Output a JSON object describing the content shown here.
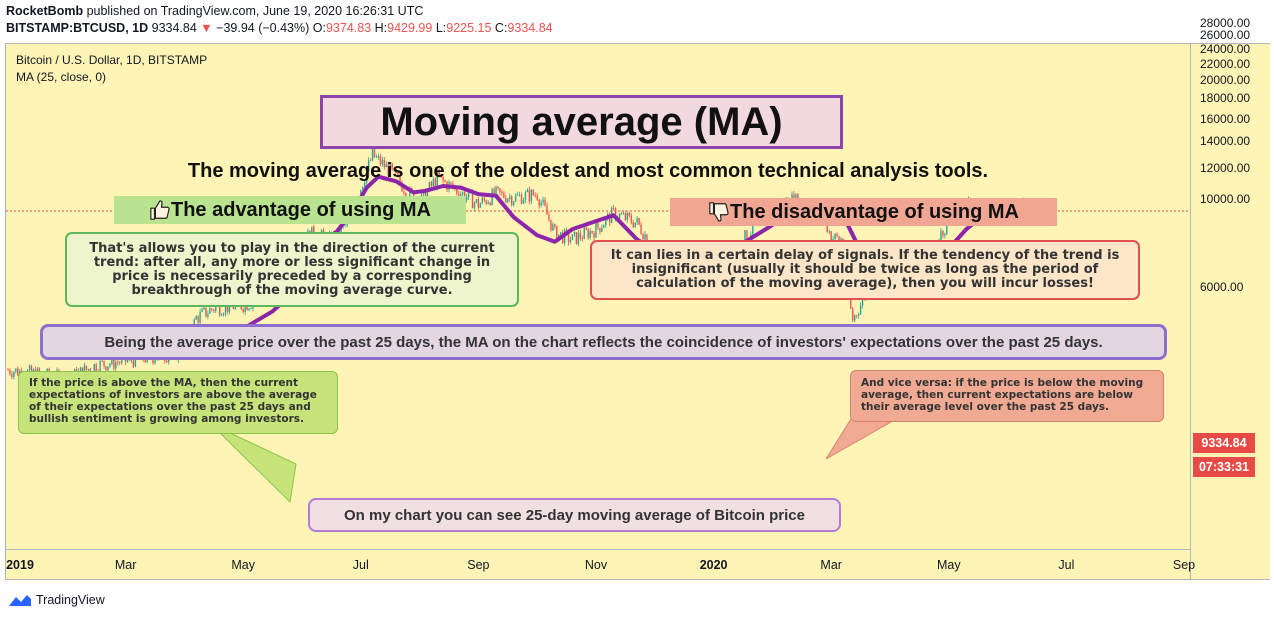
{
  "header": {
    "author": "RocketBomb",
    "published_text": "published on TradingView.com, June 19, 2020 16:26:31 UTC",
    "symbol_line_prefix": "BITSTAMP:BTCUSD, 1D",
    "last_price": "9334.84",
    "change_arrow": "▼",
    "change_text": "−39.94 (−0.43%)",
    "o_label": "O:",
    "o_value": "9374.83",
    "h_label": "H:",
    "h_value": "9429.99",
    "l_label": "L:",
    "l_value": "9225.15",
    "c_label": "C:",
    "c_value": "9334.84"
  },
  "legend": {
    "symbol": "Bitcoin / U.S. Dollar, 1D, BITSTAMP",
    "indicator": "MA (25, close, 0)"
  },
  "annotations": {
    "title": "Moving average (MA)",
    "subtitle": "The moving average is one of the oldest and most common technical analysis tools.",
    "advantage_heading": "The advantage of using MA",
    "advantage_icon": "thumbs-up-icon",
    "advantage_text": "That's allows you to play in the direction of the current trend: after all, any more or less significant change in price is necessarily preceded by a corresponding breakthrough of the moving average curve.",
    "disadvantage_heading": "The disadvantage of using MA",
    "disadvantage_icon": "thumbs-down-icon",
    "disadvantage_text": "It can lies in a certain delay of signals. If the tendency of the trend is insignificant (usually it should be twice as long as the period of calculation of the moving average), then you will incur losses!",
    "wide_text": "Being the average price over the past 25 days, the MA on the chart reflects the coincidence of investors' expectations over the past 25 days.",
    "note_above": "If the price is above the MA, then the current expectations of investors are above the average of their expectations over the past 25 days and bullish sentiment is growing among investors.",
    "note_below": "And vice versa: if the price is below the moving average, then current expectations are below their average level over the past 25 days.",
    "bottom_text": "On my chart you can see  25-day moving average of Bitcoin price"
  },
  "price_tag": "9334.84",
  "time_tag": "07:33:31",
  "footer": {
    "brand": "TradingView"
  },
  "colors": {
    "background": "#fdf4b5",
    "candle_up": "#26a69a",
    "candle_down": "#ef5350",
    "ma_line": "#8e24aa",
    "price_line": "#e84a45"
  },
  "chart_data": {
    "type": "line",
    "ylim": [
      4100,
      29400
    ],
    "y_ticks": [
      "28000.00",
      "26000.00",
      "24000.00",
      "22000.00",
      "20000.00",
      "18000.00",
      "16000.00",
      "14000.00",
      "12000.00",
      "10000.00",
      "6000.00"
    ],
    "x_ticks": [
      {
        "label": "2019",
        "bold": true
      },
      {
        "label": "Mar",
        "bold": false
      },
      {
        "label": "May",
        "bold": false
      },
      {
        "label": "Jul",
        "bold": false
      },
      {
        "label": "Sep",
        "bold": false
      },
      {
        "label": "Nov",
        "bold": false
      },
      {
        "label": "2020",
        "bold": true
      },
      {
        "label": "Mar",
        "bold": false
      },
      {
        "label": "May",
        "bold": false
      },
      {
        "label": "Jul",
        "bold": false
      },
      {
        "label": "Sep",
        "bold": false
      }
    ],
    "x_months": [
      0,
      2,
      4,
      6,
      8,
      10,
      12,
      14,
      16,
      18,
      20
    ],
    "price_line": 9334.84,
    "series": [
      {
        "kind": "price",
        "x": [
          0.0,
          0.5,
          1.0,
          1.5,
          2.0,
          2.5,
          3.0,
          3.2,
          3.5,
          4.0,
          4.5,
          5.0,
          5.2,
          5.5,
          5.8,
          6.0,
          6.2,
          6.5,
          6.8,
          7.0,
          7.3,
          7.6,
          8.0,
          8.3,
          8.6,
          9.0,
          9.3,
          9.6,
          10.0,
          10.3,
          10.7,
          11.0,
          11.3,
          11.6,
          12.0,
          12.3,
          12.7,
          13.0,
          13.3,
          13.6,
          13.9,
          14.0,
          14.2,
          14.35,
          14.5,
          14.8,
          15.0,
          15.3,
          15.6,
          16.0,
          16.3,
          16.6,
          17.0,
          17.3,
          17.6
        ],
        "close": [
          3700,
          3600,
          3500,
          3800,
          3900,
          4000,
          4100,
          5000,
          5300,
          5400,
          5700,
          7900,
          8200,
          7800,
          8800,
          10700,
          12900,
          11800,
          10400,
          9800,
          11300,
          10600,
          9700,
          10300,
          10100,
          10300,
          8200,
          7900,
          8400,
          9200,
          8700,
          7400,
          7200,
          7300,
          7200,
          7300,
          8500,
          9400,
          10000,
          9700,
          8800,
          8000,
          7900,
          4900,
          5400,
          6800,
          6600,
          6900,
          7000,
          8800,
          9800,
          9400,
          9500,
          9500,
          9334.84
        ]
      },
      {
        "kind": "ma",
        "name": "MA (25, close, 0)",
        "x": [
          3.8,
          4.0,
          4.5,
          4.8,
          5.0,
          5.3,
          5.6,
          5.9,
          6.1,
          6.3,
          6.6,
          6.9,
          7.1,
          7.4,
          7.7,
          8.0,
          8.3,
          8.6,
          9.0,
          9.3,
          9.6,
          10.0,
          10.3,
          10.7,
          11.0,
          11.3,
          11.6,
          12.0,
          12.3,
          12.6,
          13.0,
          13.3,
          13.6,
          13.9,
          14.2,
          14.5,
          14.8,
          15.0,
          15.3,
          15.6,
          16.0,
          16.3,
          16.6,
          17.0,
          17.3,
          17.6
        ],
        "values": [
          4200,
          4700,
          5200,
          5700,
          6700,
          7700,
          8300,
          9500,
          10700,
          11400,
          11100,
          10400,
          10500,
          10800,
          10700,
          10300,
          10200,
          9000,
          8100,
          7800,
          8400,
          8800,
          9100,
          7900,
          7400,
          7300,
          7200,
          7200,
          7400,
          7900,
          8600,
          9400,
          9900,
          9800,
          9100,
          7400,
          6300,
          6100,
          6700,
          6900,
          7500,
          8400,
          9100,
          9300,
          9400,
          9500
        ]
      }
    ]
  }
}
